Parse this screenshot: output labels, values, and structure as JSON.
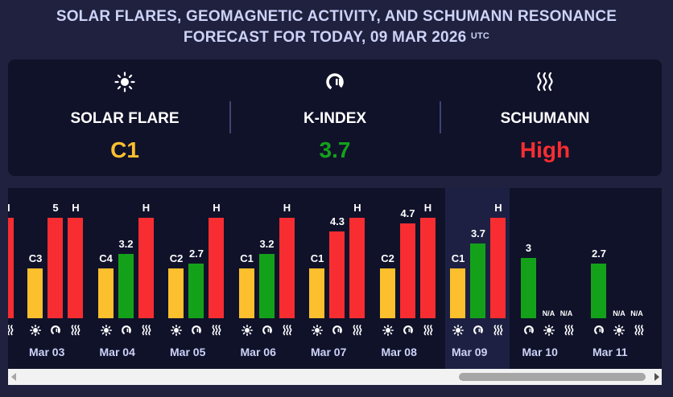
{
  "header": {
    "title_line1": "SOLAR FLARES, GEOMAGNETIC ACTIVITY, AND SCHUMANN RESONANCE",
    "title_line2": "FORECAST FOR TODAY, 09 MAR 2026",
    "title_sup": "UTC"
  },
  "summary": {
    "solar": {
      "icon": "sun-icon",
      "label": "SOLAR FLARE",
      "value": "C1",
      "color": "#fcbf2d"
    },
    "kindex": {
      "icon": "magnet-icon",
      "label": "K-INDEX",
      "value": "3.7",
      "color": "#14a11a"
    },
    "schumann": {
      "icon": "waves-icon",
      "label": "SCHUMANN",
      "value": "High",
      "color": "#f72d31"
    }
  },
  "colors": {
    "flare": "#fcbf2d",
    "kindex": "#14a11a",
    "schumann": "#f72d31",
    "today_bg": "#1e2043"
  },
  "chart_data": {
    "type": "bar",
    "categories": [
      "Mar 03",
      "Mar 04",
      "Mar 05",
      "Mar 06",
      "Mar 07",
      "Mar 08",
      "Mar 09",
      "Mar 10",
      "Mar 11"
    ],
    "today": "Mar 09",
    "partial_prev_schumann": "H",
    "days": [
      {
        "date": "Mar 03",
        "flare": "C3",
        "kindex": "5",
        "kindex_value": 5,
        "schumann": "H"
      },
      {
        "date": "Mar 04",
        "flare": "C4",
        "kindex": "3.2",
        "kindex_value": 3.2,
        "schumann": "H"
      },
      {
        "date": "Mar 05",
        "flare": "C2",
        "kindex": "2.7",
        "kindex_value": 2.7,
        "schumann": "H"
      },
      {
        "date": "Mar 06",
        "flare": "C1",
        "kindex": "3.2",
        "kindex_value": 3.2,
        "schumann": "H"
      },
      {
        "date": "Mar 07",
        "flare": "C1",
        "kindex": "4.3",
        "kindex_value": 4.3,
        "schumann": "H"
      },
      {
        "date": "Mar 08",
        "flare": "C2",
        "kindex": "4.7",
        "kindex_value": 4.7,
        "schumann": "H"
      },
      {
        "date": "Mar 09",
        "flare": "C1",
        "kindex": "3.7",
        "kindex_value": 3.7,
        "schumann": "H"
      },
      {
        "date": "Mar 10",
        "flare": "N/A",
        "kindex": "3",
        "kindex_value": 3,
        "schumann": "N/A"
      },
      {
        "date": "Mar 11",
        "flare": "N/A",
        "kindex": "2.7",
        "kindex_value": 2.7,
        "schumann": "N/A"
      }
    ]
  }
}
